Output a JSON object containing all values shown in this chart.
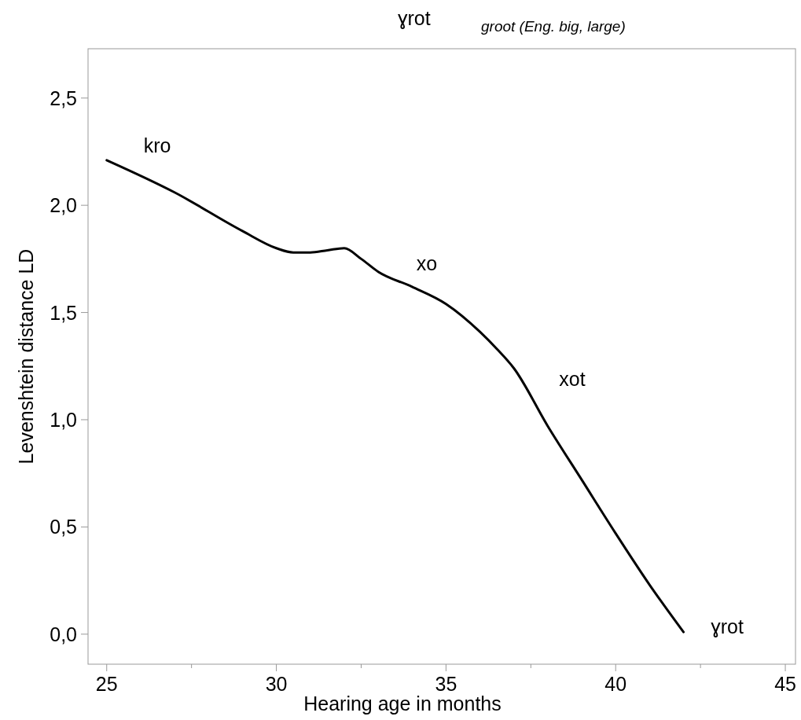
{
  "chart_data": {
    "type": "line",
    "title": "ɣrot",
    "subtitle": "groot (Eng. big, large)",
    "xlabel": "Hearing age in months",
    "ylabel": "Levenshtein distance LD",
    "x": [
      25,
      27,
      29,
      30,
      30.5,
      31,
      31.5,
      32,
      32.5,
      33,
      34,
      35,
      36,
      36.5,
      37,
      38,
      39,
      40,
      41,
      42
    ],
    "series": [
      {
        "color": "#000000",
        "values": [
          2.21,
          2.06,
          1.88,
          1.8,
          1.78,
          1.78,
          1.79,
          1.8,
          1.75,
          1.69,
          1.62,
          1.54,
          1.41,
          1.33,
          1.24,
          0.97,
          0.72,
          0.47,
          0.23,
          0.01
        ]
      }
    ],
    "xlim": [
      24.45,
      45.3
    ],
    "ylim": [
      -0.14,
      2.73
    ],
    "xticks": [
      25,
      {
        "value": 27.5,
        "label": null
      },
      30,
      {
        "value": 32.5,
        "label": null
      },
      35,
      {
        "value": 37.5,
        "label": null
      },
      40,
      {
        "value": 42.5,
        "label": null
      },
      45
    ],
    "yticks": [
      {
        "value": 0,
        "label": "0,0"
      },
      {
        "value": 0.5,
        "label": "0,5"
      },
      {
        "value": 1,
        "label": "1,0"
      },
      {
        "value": 1.5,
        "label": "1,5"
      },
      {
        "value": 2,
        "label": "2,0"
      },
      {
        "value": 2.5,
        "label": "2,5"
      }
    ],
    "annotations": [
      "kro",
      "xo",
      "xot",
      "ɣrot"
    ],
    "grid": false,
    "marker": "none",
    "line_style": "solid"
  }
}
